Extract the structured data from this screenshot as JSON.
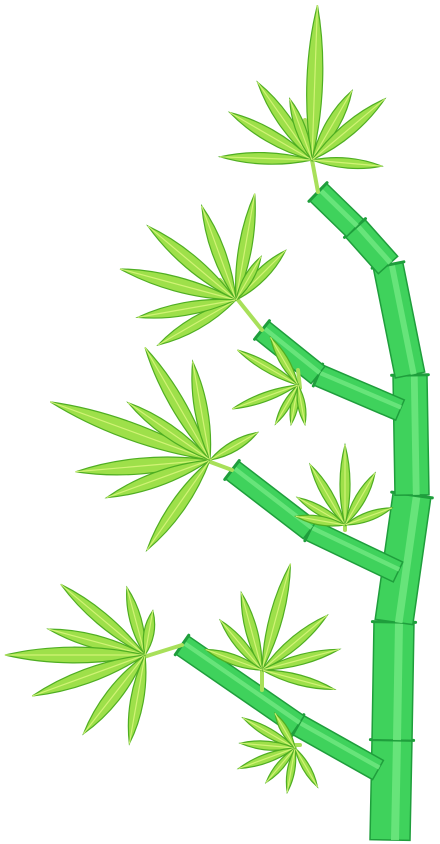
{
  "colors": {
    "background": "#ffffff",
    "stem_light": "#6ee87f",
    "stem_mid": "#3fd25c",
    "stem_dark": "#1f9e3c",
    "leaf_light": "#d6f57a",
    "leaf_mid": "#9ee04a",
    "leaf_dark": "#4fae22",
    "twig": "#a8e05a"
  },
  "image": {
    "subject": "bamboo-branch-icon"
  }
}
